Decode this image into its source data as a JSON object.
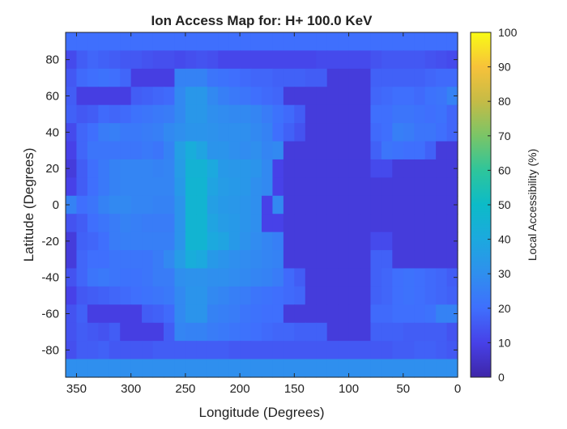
{
  "chart_data": {
    "type": "heatmap",
    "title": "Ion Access Map for: H+ 100.0 KeV",
    "xlabel": "Longitude (Degrees)",
    "ylabel": "Latitude (Degrees)",
    "colorbar_label": "Local Accessibility (%)",
    "colormap": "parula",
    "xlim": [
      360,
      0
    ],
    "ylim": [
      -95,
      95
    ],
    "clim": [
      0,
      100
    ],
    "x_reversed": true,
    "xticks": [
      350,
      300,
      250,
      200,
      150,
      100,
      50,
      0
    ],
    "yticks": [
      -80,
      -60,
      -40,
      -20,
      0,
      20,
      40,
      60,
      80
    ],
    "colorbar_ticks": [
      0,
      10,
      20,
      30,
      40,
      50,
      60,
      70,
      80,
      90,
      100
    ],
    "x_edges": [
      360,
      350,
      340,
      330,
      320,
      310,
      300,
      290,
      280,
      270,
      260,
      250,
      240,
      230,
      220,
      210,
      200,
      190,
      180,
      170,
      160,
      150,
      140,
      130,
      120,
      110,
      100,
      90,
      80,
      70,
      60,
      50,
      40,
      30,
      20,
      10,
      0
    ],
    "lat_edges": [
      95,
      85,
      75,
      65,
      55,
      45,
      35,
      25,
      15,
      5,
      -5,
      -15,
      -25,
      -35,
      -45,
      -55,
      -65,
      -75,
      -85,
      -95
    ],
    "values": [
      [
        20,
        20,
        20,
        20,
        20,
        20,
        20,
        20,
        20,
        20,
        20,
        20,
        20,
        20,
        20,
        20,
        20,
        20,
        20,
        20,
        20,
        20,
        20,
        20,
        20,
        20,
        20,
        20,
        20,
        20,
        20,
        20,
        20,
        20,
        20,
        20
      ],
      [
        12,
        16,
        18,
        17,
        16,
        15,
        15,
        14,
        13,
        13,
        12,
        13,
        14,
        13,
        11,
        11,
        11,
        11,
        11,
        11,
        11,
        11,
        11,
        12,
        12,
        12,
        12,
        12,
        14,
        15,
        15,
        15,
        15,
        14,
        13,
        12
      ],
      [
        15,
        19,
        20,
        21,
        20,
        18,
        9,
        9,
        9,
        9,
        26,
        26,
        26,
        22,
        21,
        20,
        19,
        18,
        18,
        17,
        17,
        17,
        16,
        16,
        8,
        8,
        8,
        8,
        17,
        17,
        17,
        17,
        17,
        18,
        19,
        19
      ],
      [
        16,
        9,
        9,
        9,
        9,
        9,
        16,
        17,
        18,
        19,
        28,
        33,
        33,
        28,
        25,
        23,
        22,
        20,
        19,
        18,
        8,
        8,
        8,
        8,
        8,
        8,
        8,
        8,
        18,
        19,
        20,
        20,
        19,
        21,
        22,
        26
      ],
      [
        17,
        15,
        16,
        19,
        18,
        19,
        21,
        22,
        23,
        24,
        28,
        33,
        33,
        30,
        29,
        28,
        28,
        27,
        24,
        21,
        19,
        16,
        8,
        8,
        8,
        8,
        8,
        8,
        20,
        20,
        22,
        22,
        21,
        20,
        21,
        18
      ],
      [
        12,
        18,
        20,
        24,
        25,
        23,
        23,
        24,
        25,
        28,
        30,
        32,
        32,
        31,
        30,
        30,
        30,
        28,
        26,
        20,
        17,
        14,
        8,
        8,
        8,
        8,
        8,
        8,
        19,
        20,
        25,
        24,
        22,
        22,
        20,
        18
      ],
      [
        10,
        18,
        22,
        22,
        22,
        22,
        22,
        23,
        22,
        26,
        36,
        42,
        38,
        32,
        32,
        30,
        29,
        30,
        27,
        28,
        8,
        8,
        8,
        8,
        8,
        8,
        8,
        8,
        17,
        22,
        21,
        20,
        20,
        17,
        8,
        8
      ],
      [
        8,
        16,
        20,
        23,
        26,
        27,
        27,
        27,
        26,
        27,
        35,
        45,
        45,
        40,
        34,
        33,
        33,
        32,
        28,
        10,
        8,
        8,
        8,
        8,
        8,
        8,
        8,
        8,
        12,
        12,
        8,
        8,
        8,
        8,
        8,
        8
      ],
      [
        10,
        16,
        20,
        23,
        26,
        27,
        27,
        27,
        27,
        27,
        34,
        46,
        46,
        38,
        35,
        34,
        33,
        30,
        28,
        10,
        8,
        8,
        8,
        8,
        8,
        8,
        8,
        8,
        8,
        8,
        8,
        8,
        8,
        8,
        8,
        8
      ],
      [
        26,
        20,
        22,
        26,
        28,
        28,
        27,
        27,
        26,
        26,
        32,
        46,
        46,
        36,
        34,
        33,
        32,
        30,
        10,
        28,
        8,
        8,
        8,
        8,
        8,
        8,
        8,
        8,
        8,
        8,
        8,
        8,
        8,
        8,
        8,
        8
      ],
      [
        14,
        16,
        20,
        22,
        24,
        26,
        25,
        24,
        24,
        24,
        32,
        46,
        46,
        38,
        35,
        34,
        32,
        30,
        10,
        10,
        8,
        8,
        8,
        8,
        8,
        8,
        8,
        8,
        8,
        8,
        8,
        8,
        8,
        8,
        8,
        8
      ],
      [
        8,
        17,
        18,
        20,
        24,
        25,
        25,
        25,
        25,
        25,
        32,
        46,
        46,
        40,
        38,
        34,
        31,
        29,
        27,
        25,
        8,
        8,
        8,
        8,
        8,
        8,
        8,
        8,
        12,
        12,
        8,
        8,
        8,
        8,
        8,
        8
      ],
      [
        8,
        18,
        20,
        20,
        22,
        22,
        22,
        22,
        24,
        28,
        35,
        42,
        40,
        34,
        32,
        30,
        29,
        28,
        27,
        26,
        8,
        8,
        8,
        8,
        8,
        8,
        8,
        8,
        17,
        17,
        8,
        8,
        8,
        8,
        8,
        8
      ],
      [
        14,
        18,
        22,
        23,
        22,
        21,
        21,
        22,
        24,
        24,
        30,
        31,
        31,
        30,
        30,
        29,
        28,
        27,
        26,
        24,
        19,
        16,
        8,
        8,
        8,
        8,
        8,
        8,
        17,
        18,
        20,
        21,
        20,
        19,
        18,
        16
      ],
      [
        10,
        15,
        16,
        17,
        18,
        19,
        20,
        21,
        22,
        23,
        28,
        32,
        32,
        28,
        27,
        25,
        24,
        22,
        21,
        20,
        19,
        18,
        8,
        8,
        8,
        8,
        8,
        8,
        17,
        18,
        20,
        21,
        20,
        19,
        18,
        17
      ],
      [
        14,
        17,
        9,
        9,
        9,
        9,
        9,
        16,
        17,
        19,
        28,
        32,
        32,
        26,
        25,
        24,
        22,
        21,
        20,
        20,
        8,
        8,
        8,
        8,
        8,
        8,
        8,
        8,
        19,
        19,
        20,
        20,
        20,
        21,
        26,
        26
      ],
      [
        14,
        16,
        15,
        14,
        16,
        9,
        9,
        9,
        9,
        16,
        27,
        26,
        26,
        24,
        23,
        22,
        21,
        20,
        19,
        18,
        18,
        17,
        17,
        17,
        8,
        8,
        8,
        8,
        17,
        17,
        17,
        16,
        16,
        16,
        16,
        14
      ],
      [
        13,
        16,
        16,
        17,
        15,
        15,
        15,
        15,
        16,
        16,
        16,
        16,
        16,
        16,
        16,
        15,
        15,
        15,
        15,
        15,
        15,
        15,
        15,
        15,
        15,
        15,
        15,
        15,
        15,
        15,
        16,
        16,
        17,
        17,
        16,
        15
      ],
      [
        30,
        30,
        30,
        30,
        30,
        30,
        30,
        30,
        30,
        30,
        30,
        30,
        30,
        30,
        30,
        30,
        30,
        30,
        30,
        30,
        30,
        30,
        30,
        30,
        30,
        30,
        30,
        30,
        30,
        30,
        30,
        30,
        30,
        30,
        30,
        30
      ]
    ]
  }
}
